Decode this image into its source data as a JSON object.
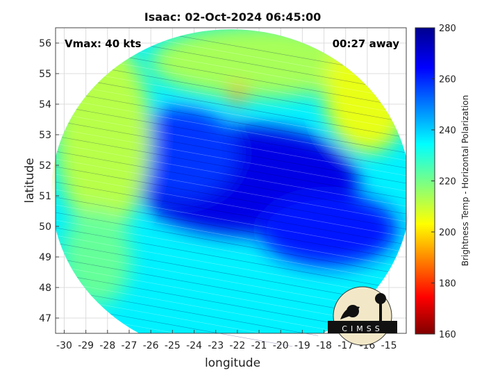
{
  "chart_data": {
    "type": "heatmap",
    "title": "Isaac: 02-Oct-2024 06:45:00",
    "xlabel": "longitude",
    "ylabel": "latitude",
    "xlim": [
      -30.4,
      -14.2
    ],
    "ylim": [
      46.5,
      56.5
    ],
    "x_ticks": [
      -30,
      -29,
      -28,
      -27,
      -26,
      -25,
      -24,
      -23,
      -22,
      -21,
      -20,
      -19,
      -18,
      -17,
      -16,
      -15
    ],
    "y_ticks": [
      47,
      48,
      49,
      50,
      51,
      52,
      53,
      54,
      55,
      56
    ],
    "grid": true,
    "annotations": {
      "vmax": "Vmax: 40 kts",
      "time_offset": "00:27 away"
    },
    "colorbar": {
      "label": "Brightness Temp - Horizontal Polarization",
      "range": [
        160,
        280
      ],
      "ticks": [
        160,
        180,
        200,
        220,
        240,
        260,
        280
      ],
      "colormap": "jet",
      "placement": "right"
    },
    "field": {
      "background_value": 236,
      "swath_center": [
        -22.3,
        51.1
      ],
      "swath_radius_deg": [
        8.3,
        5.35
      ],
      "regions": [
        {
          "name": "cold-core",
          "center": [
            -21.6,
            51.5
          ],
          "radius": [
            5.2,
            1.8
          ],
          "value": 268
        },
        {
          "name": "band-east",
          "center": [
            -17.8,
            49.9
          ],
          "radius": [
            3.2,
            1.2
          ],
          "value": 262
        },
        {
          "name": "band-west",
          "center": [
            -24.6,
            52.4
          ],
          "radius": [
            2.6,
            1.5
          ],
          "value": 258
        },
        {
          "name": "warm-nw",
          "center": [
            -28.2,
            53.0
          ],
          "radius": [
            2.2,
            3.2
          ],
          "value": 212
        },
        {
          "name": "warm-north",
          "center": [
            -21.0,
            55.4
          ],
          "radius": [
            5.0,
            1.2
          ],
          "value": 214
        },
        {
          "name": "warm-ne",
          "center": [
            -16.0,
            54.4
          ],
          "radius": [
            2.0,
            2.0
          ],
          "value": 206
        },
        {
          "name": "warm-spot",
          "center": [
            -22.0,
            54.3
          ],
          "radius": [
            0.35,
            0.35
          ],
          "value": 190
        },
        {
          "name": "warm-sw",
          "center": [
            -28.5,
            49.0
          ],
          "radius": [
            1.6,
            1.6
          ],
          "value": 222
        }
      ]
    }
  },
  "logo": {
    "text": "CIMSS"
  }
}
